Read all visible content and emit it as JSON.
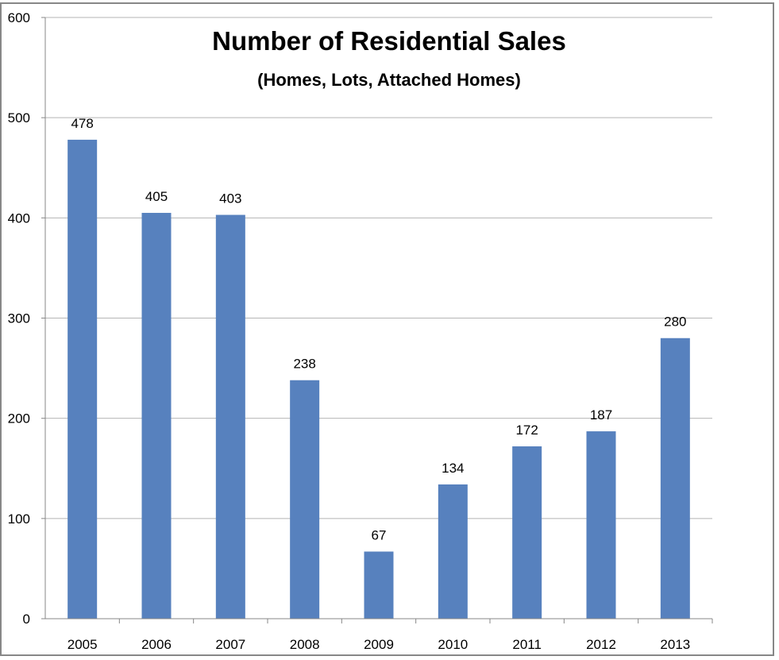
{
  "chart_data": {
    "type": "bar",
    "title": "Number of Residential Sales",
    "subtitle": "(Homes, Lots, Attached Homes)",
    "xlabel": "",
    "ylabel": "",
    "categories": [
      "2005",
      "2006",
      "2007",
      "2008",
      "2009",
      "2010",
      "2011",
      "2012",
      "2013"
    ],
    "values": [
      478,
      405,
      403,
      238,
      67,
      134,
      172,
      187,
      280
    ],
    "data_labels": [
      "478",
      "405",
      "403",
      "238",
      "67",
      "134",
      "172",
      "187",
      "280"
    ],
    "ylim": [
      0,
      600
    ],
    "yticks": [
      "0",
      "100",
      "200",
      "300",
      "400",
      "500",
      "600"
    ],
    "grid": true,
    "legend": "none",
    "colors": {
      "bar": "#5781BE",
      "grid": "#B5B5B5",
      "axis": "#878787",
      "frame": "#878787"
    }
  }
}
